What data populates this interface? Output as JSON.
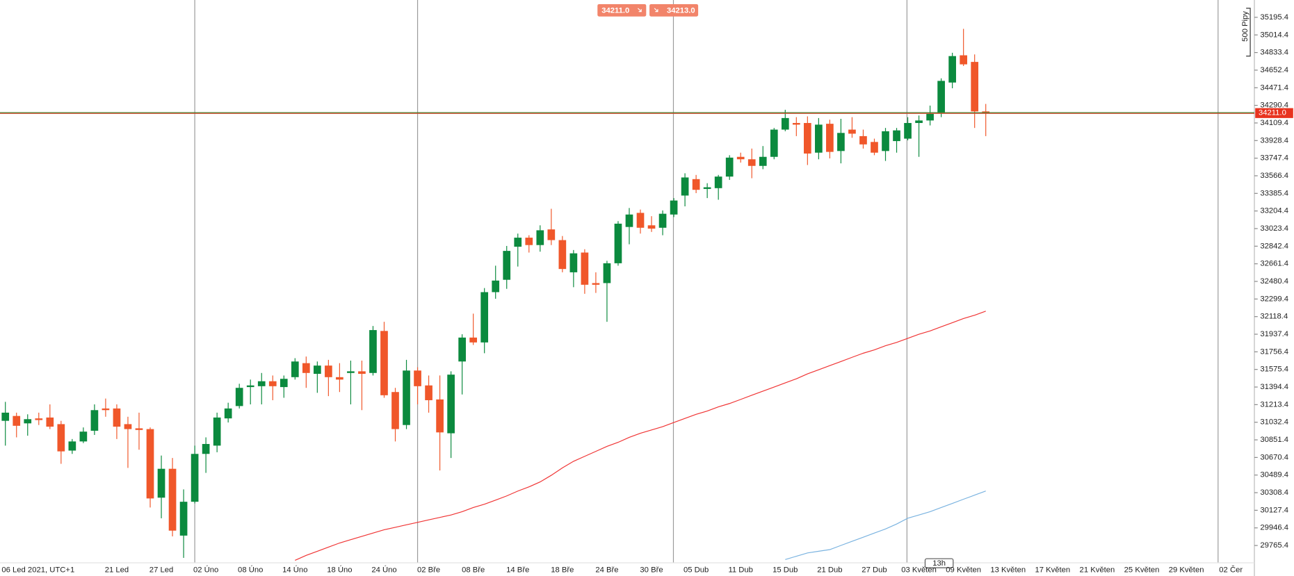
{
  "chart_data": {
    "type": "candlestick",
    "axis_start_label": "06 Led 2021, UTC+1",
    "categories": [
      null,
      null,
      null,
      null,
      null,
      null,
      null,
      null,
      null,
      null,
      "21 Led",
      null,
      null,
      null,
      "27 Led",
      null,
      null,
      null,
      "02 Úno",
      null,
      null,
      null,
      "08 Úno",
      null,
      null,
      null,
      "14 Úno",
      null,
      null,
      null,
      "18 Úno",
      null,
      null,
      null,
      "24 Úno",
      null,
      null,
      null,
      "02 Bře",
      null,
      null,
      null,
      "08 Bře",
      null,
      null,
      null,
      "14 Bře",
      null,
      null,
      null,
      "18 Bře",
      null,
      null,
      null,
      "24 Bře",
      null,
      null,
      null,
      "30 Bře",
      null,
      null,
      null,
      "05 Dub",
      null,
      null,
      null,
      "11 Dub",
      null,
      null,
      null,
      "15 Dub",
      null,
      null,
      null,
      "21 Dub",
      null,
      null,
      null,
      "27 Dub",
      null,
      null,
      null,
      "03 Květen",
      null,
      null,
      null,
      "09 Květen",
      null,
      null
    ],
    "future_labels": [
      "13 Květen",
      "17 Květen",
      "21 Květen",
      "25 Květen",
      "29 Květen",
      "02 Čer"
    ],
    "open": [
      31047,
      31097,
      31021,
      31072,
      31081,
      31013,
      30741,
      30835,
      30945,
      31174,
      31174,
      31013,
      30970,
      30962,
      30257,
      30554,
      29867,
      30215,
      30707,
      30792,
      31072,
      31199,
      31394,
      31403,
      31454,
      31394,
      31496,
      31640,
      31530,
      31615,
      31496,
      31539,
      31556,
      31539,
      31971,
      31343,
      31004,
      31564,
      31411,
      31267,
      30919,
      31657,
      31903,
      31853,
      32370,
      32497,
      32837,
      32930,
      32854,
      33015,
      32905,
      32574,
      32777,
      32463,
      32463,
      32667,
      33040,
      33185,
      33057,
      33032,
      33168,
      33363,
      33532,
      33431,
      33439,
      33558,
      33761,
      33736,
      33668,
      33761,
      34041,
      34109,
      34109,
      33804,
      34101,
      33821,
      34041,
      33974,
      33914,
      33821,
      33923,
      33948,
      34109,
      34135,
      34211,
      34525,
      34805,
      34737,
      34228
    ],
    "high": [
      31242,
      31131,
      31114,
      31131,
      31216,
      31047,
      30860,
      30979,
      31216,
      31276,
      31216,
      31089,
      31131,
      30979,
      30690,
      30665,
      30342,
      30792,
      30877,
      31131,
      31233,
      31428,
      31471,
      31539,
      31513,
      31513,
      31691,
      31708,
      31657,
      31674,
      31640,
      31666,
      31666,
      32022,
      32065,
      31386,
      31674,
      31598,
      31513,
      31513,
      31556,
      31937,
      32149,
      32412,
      32642,
      32845,
      32972,
      32955,
      33057,
      33227,
      32947,
      32803,
      32811,
      32574,
      32692,
      33100,
      33235,
      33219,
      33151,
      33210,
      33337,
      33592,
      33575,
      33490,
      33575,
      33778,
      33804,
      33846,
      33872,
      34058,
      34245,
      34169,
      34177,
      34160,
      34143,
      34152,
      34169,
      34041,
      33948,
      34058,
      34058,
      34169,
      34186,
      34288,
      34568,
      34831,
      35077,
      34814,
      34305
    ],
    "low": [
      30792,
      30877,
      30894,
      31004,
      30962,
      30605,
      30707,
      30818,
      30902,
      31089,
      30860,
      30563,
      30750,
      30156,
      30045,
      29859,
      29638,
      30198,
      30512,
      30724,
      31030,
      31174,
      31216,
      31216,
      31259,
      31284,
      31471,
      31386,
      31335,
      31301,
      31343,
      31216,
      31157,
      31513,
      31284,
      30835,
      30962,
      31216,
      31131,
      30537,
      30665,
      31318,
      31827,
      31742,
      32302,
      32404,
      32633,
      32777,
      32786,
      32854,
      32574,
      32421,
      32353,
      32362,
      32065,
      32642,
      32862,
      32972,
      32989,
      32955,
      33142,
      33252,
      33388,
      33337,
      33320,
      33524,
      33702,
      33541,
      33634,
      33736,
      34024,
      33974,
      33677,
      33736,
      33745,
      33694,
      33957,
      33846,
      33778,
      33719,
      33804,
      33931,
      33761,
      34084,
      34169,
      34466,
      34695,
      34058,
      33974
    ],
    "close": [
      31131,
      30996,
      31064,
      31055,
      30987,
      30733,
      30835,
      30936,
      31157,
      31157,
      30987,
      30962,
      30953,
      30249,
      30554,
      29918,
      30215,
      30707,
      30809,
      31081,
      31174,
      31386,
      31411,
      31454,
      31403,
      31479,
      31657,
      31539,
      31615,
      31496,
      31471,
      31556,
      31530,
      31980,
      31310,
      30962,
      31564,
      31403,
      31259,
      30928,
      31522,
      31903,
      31853,
      32370,
      32489,
      32794,
      32930,
      32854,
      33006,
      32905,
      32608,
      32769,
      32446,
      32446,
      32667,
      33074,
      33168,
      33032,
      33023,
      33176,
      33312,
      33549,
      33422,
      33448,
      33558,
      33753,
      33736,
      33668,
      33761,
      34041,
      34160,
      34092,
      33795,
      34092,
      33812,
      34007,
      33999,
      33889,
      33804,
      34024,
      34033,
      34109,
      34135,
      34203,
      34542,
      34797,
      34712,
      34228,
      34211
    ],
    "up_color": "#0b8a3e",
    "down_color": "#f0572a",
    "series": [
      {
        "color": "#f03434",
        "values": [
          null,
          null,
          null,
          null,
          null,
          null,
          null,
          null,
          null,
          null,
          null,
          null,
          null,
          null,
          null,
          null,
          null,
          null,
          null,
          null,
          null,
          null,
          null,
          null,
          null,
          null,
          29613,
          29664,
          29706,
          29749,
          29791,
          29825,
          29859,
          29893,
          29927,
          29952,
          29978,
          30003,
          30029,
          30054,
          30079,
          30113,
          30156,
          30190,
          30232,
          30275,
          30325,
          30368,
          30419,
          30487,
          30563,
          30631,
          30682,
          30733,
          30784,
          30826,
          30877,
          30919,
          30953,
          30987,
          31030,
          31072,
          31114,
          31148,
          31191,
          31225,
          31267,
          31310,
          31352,
          31394,
          31437,
          31479,
          31530,
          31572,
          31615,
          31657,
          31700,
          31742,
          31776,
          31819,
          31853,
          31895,
          31937,
          31971,
          32014,
          32056,
          32099,
          32133,
          32175
        ]
      },
      {
        "color": "#7ab3e0",
        "values": [
          null,
          null,
          null,
          null,
          null,
          null,
          null,
          null,
          null,
          null,
          null,
          null,
          null,
          null,
          null,
          null,
          null,
          null,
          null,
          null,
          null,
          null,
          null,
          null,
          null,
          null,
          null,
          null,
          null,
          null,
          null,
          null,
          null,
          null,
          null,
          null,
          null,
          null,
          null,
          null,
          null,
          null,
          null,
          null,
          null,
          null,
          null,
          null,
          null,
          null,
          null,
          null,
          null,
          null,
          null,
          null,
          null,
          null,
          null,
          null,
          null,
          null,
          null,
          null,
          null,
          null,
          null,
          null,
          null,
          null,
          29621,
          29655,
          29689,
          29706,
          29723,
          29766,
          29808,
          29850,
          29893,
          29935,
          29986,
          30046,
          30079,
          30113,
          30156,
          30198,
          30241,
          30283,
          30325
        ]
      }
    ],
    "ylim": [
      29604.4,
      35373.5
    ],
    "yticks": [
      35195.4,
      35014.4,
      34833.4,
      34652.4,
      34471.4,
      34290.4,
      34109.4,
      33928.4,
      33747.4,
      33566.4,
      33385.4,
      33204.4,
      33023.4,
      32842.4,
      32661.4,
      32480.4,
      32299.4,
      32118.4,
      31937.4,
      31756.4,
      31575.4,
      31394.4,
      31213.4,
      31032.4,
      30851.4,
      30670.4,
      30489.4,
      30308.4,
      30127.4,
      29946.4,
      29765.4
    ],
    "current_price": {
      "value": 34211,
      "label": "34211.0"
    },
    "range_label": "500 Pipy",
    "countdown": "13h"
  },
  "toolbar": {
    "sell": "34211.0",
    "buy": "34213.0"
  }
}
